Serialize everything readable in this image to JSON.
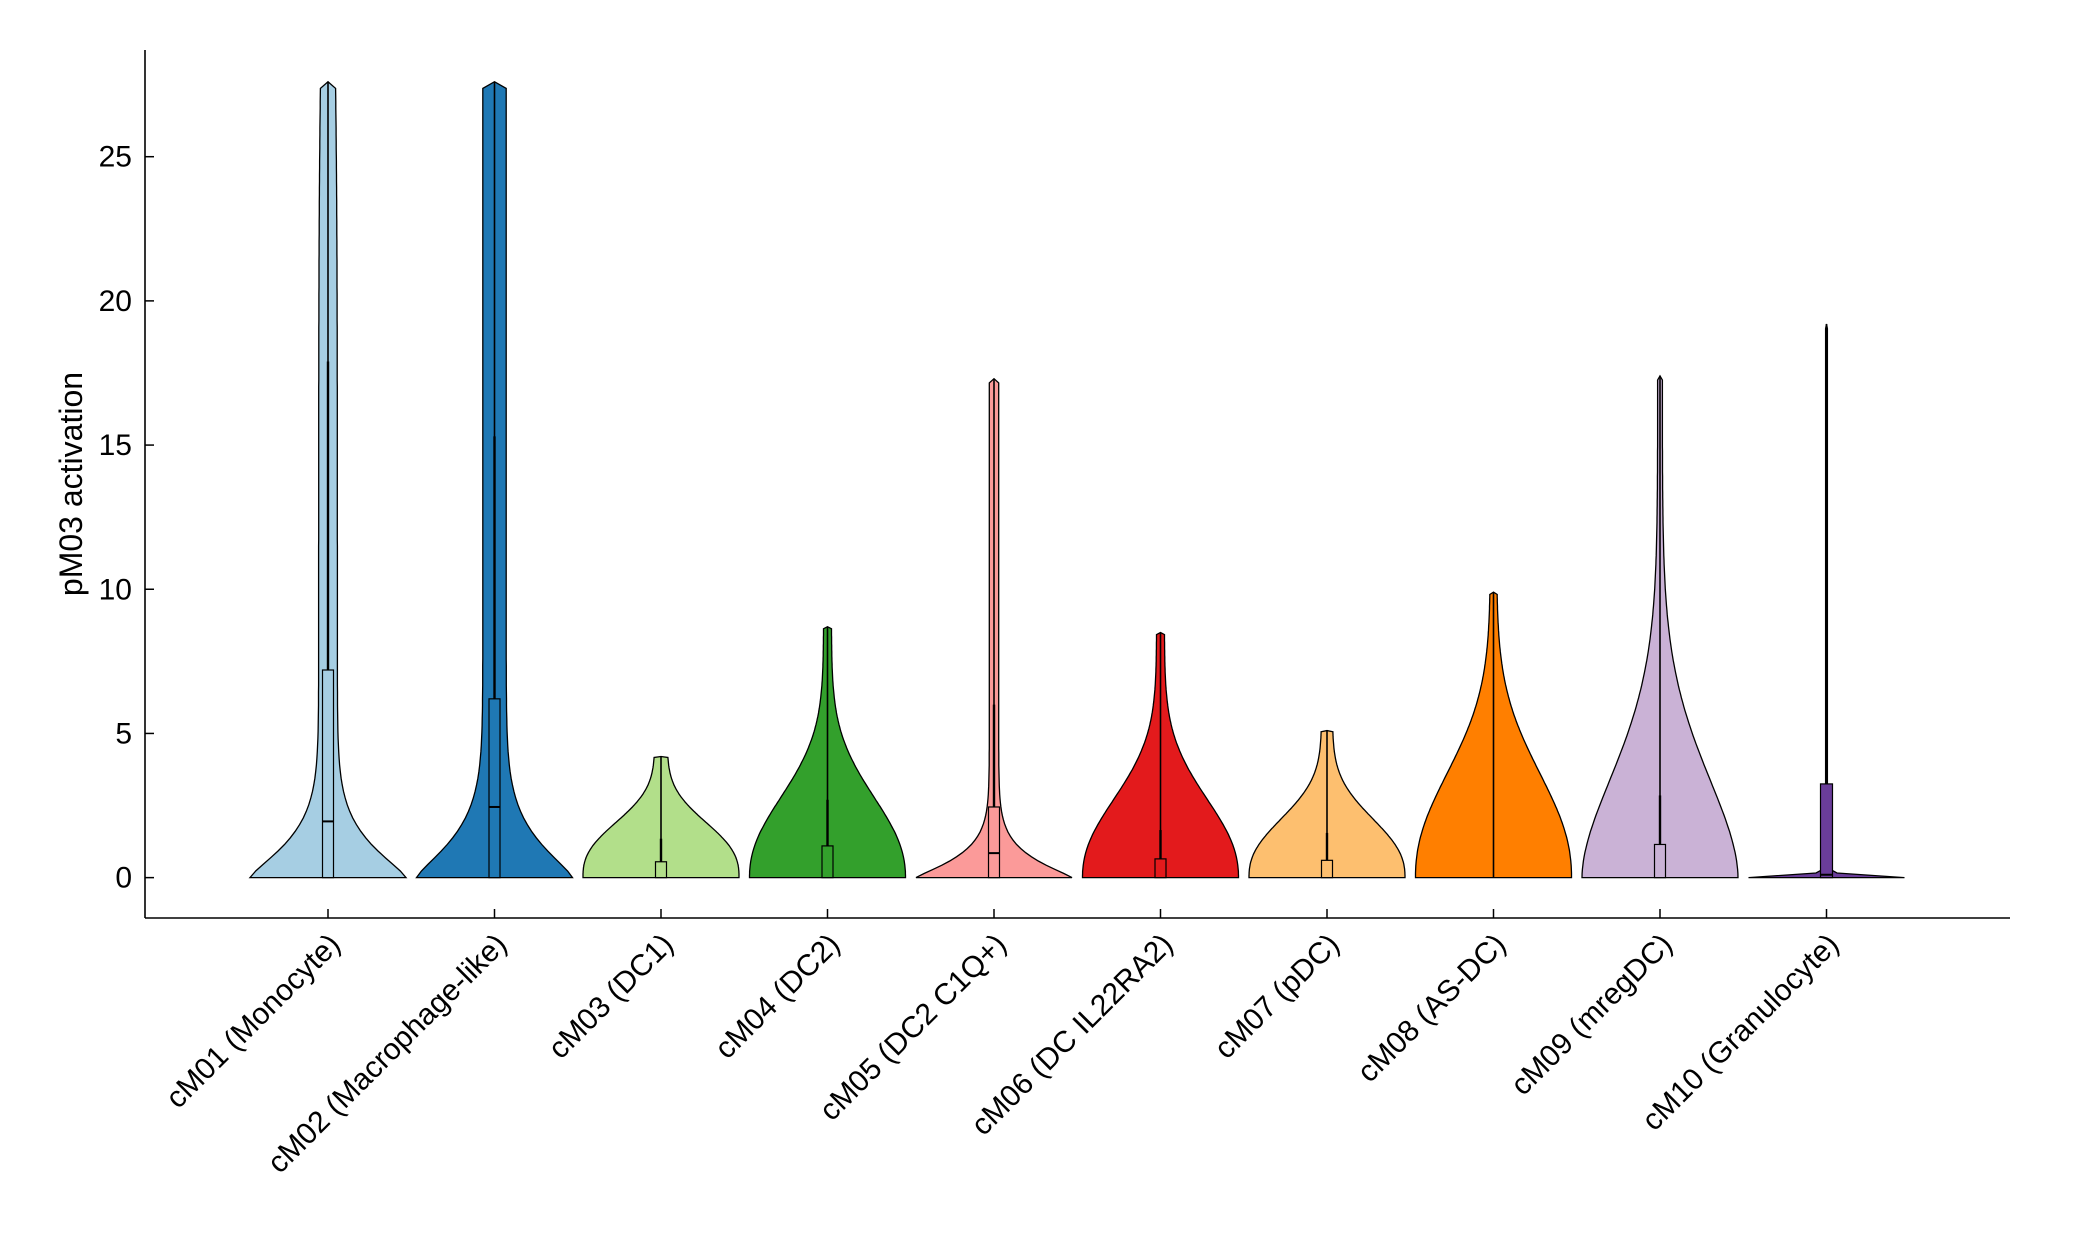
{
  "chart_data": {
    "type": "violin",
    "ylabel": "pM03 activation",
    "xlabel": "",
    "title": "",
    "ylim": [
      -1.4,
      28.7
    ],
    "yticks": [
      0,
      5,
      10,
      15,
      20,
      25
    ],
    "grid": false,
    "legend": "none",
    "categories": [
      "cM01 (Monocyte)",
      "cM02 (Macrophage-like)",
      "cM03 (DC1)",
      "cM04 (DC2)",
      "cM05 (DC2 C1Q+)",
      "cM06 (DC IL22RA2)",
      "cM07 (pDC)",
      "cM08 (AS-DC)",
      "cM09 (mregDC)",
      "cM10 (Granulocyte)"
    ],
    "colors": [
      "#a6cee3",
      "#1f78b4",
      "#b2df8a",
      "#33a02c",
      "#fb9a99",
      "#e31a1c",
      "#fdbf6f",
      "#ff7f00",
      "#cab2d6",
      "#6a3d9a"
    ],
    "series": [
      {
        "min": 0,
        "max": 27.6,
        "q1": 0,
        "median": 1.95,
        "q3": 7.2,
        "whisker_high": 17.9
      },
      {
        "min": 0,
        "max": 27.6,
        "q1": 0,
        "median": 2.45,
        "q3": 6.2,
        "whisker_high": 15.3
      },
      {
        "min": 0,
        "max": 4.2,
        "q1": 0,
        "median": 0.0,
        "q3": 0.55,
        "whisker_high": 1.35
      },
      {
        "min": 0,
        "max": 8.7,
        "q1": 0,
        "median": 0.0,
        "q3": 1.1,
        "whisker_high": 2.7
      },
      {
        "min": 0,
        "max": 17.3,
        "q1": 0,
        "median": 0.85,
        "q3": 2.45,
        "whisker_high": 6.0
      },
      {
        "min": 0,
        "max": 8.5,
        "q1": 0,
        "median": 0.0,
        "q3": 0.65,
        "whisker_high": 1.65
      },
      {
        "min": 0,
        "max": 5.1,
        "q1": 0,
        "median": 0.0,
        "q3": 0.6,
        "whisker_high": 1.55
      },
      {
        "min": 0,
        "max": 9.9,
        "q1": 0,
        "median": 0.0,
        "q3": 0.0,
        "whisker_high": 0.0
      },
      {
        "min": 0,
        "max": 17.4,
        "q1": 0,
        "median": 0.0,
        "q3": 1.15,
        "whisker_high": 2.85
      },
      {
        "min": 0,
        "max": 19.2,
        "q1": 0,
        "median": 0.1,
        "q3": 3.25,
        "whisker_high": 6.1
      }
    ]
  }
}
